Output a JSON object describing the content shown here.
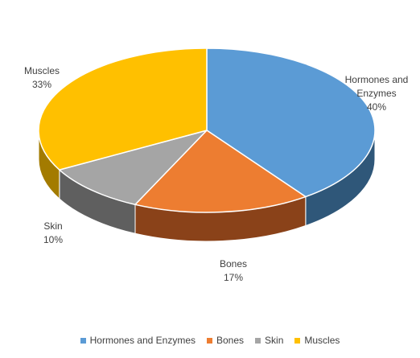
{
  "chart_data": {
    "type": "pie",
    "style": "3d",
    "categories": [
      "Hormones and Enzymes",
      "Bones",
      "Skin",
      "Muscles"
    ],
    "values": [
      40,
      17,
      10,
      33
    ],
    "unit": "%",
    "labels": [
      {
        "name_lines": [
          "Hormones and",
          "Enzymes"
        ],
        "percent": "40%"
      },
      {
        "name_lines": [
          "Bones"
        ],
        "percent": "17%"
      },
      {
        "name_lines": [
          "Skin"
        ],
        "percent": "10%"
      },
      {
        "name_lines": [
          "Muscles"
        ],
        "percent": "33%"
      }
    ],
    "colors": [
      "#5b9bd5",
      "#ed7d31",
      "#a5a5a5",
      "#ffc000"
    ],
    "side_colors": [
      "#2f5779",
      "#8a4219",
      "#5f5f5f",
      "#a37b00"
    ],
    "legend_position": "bottom",
    "title": ""
  }
}
